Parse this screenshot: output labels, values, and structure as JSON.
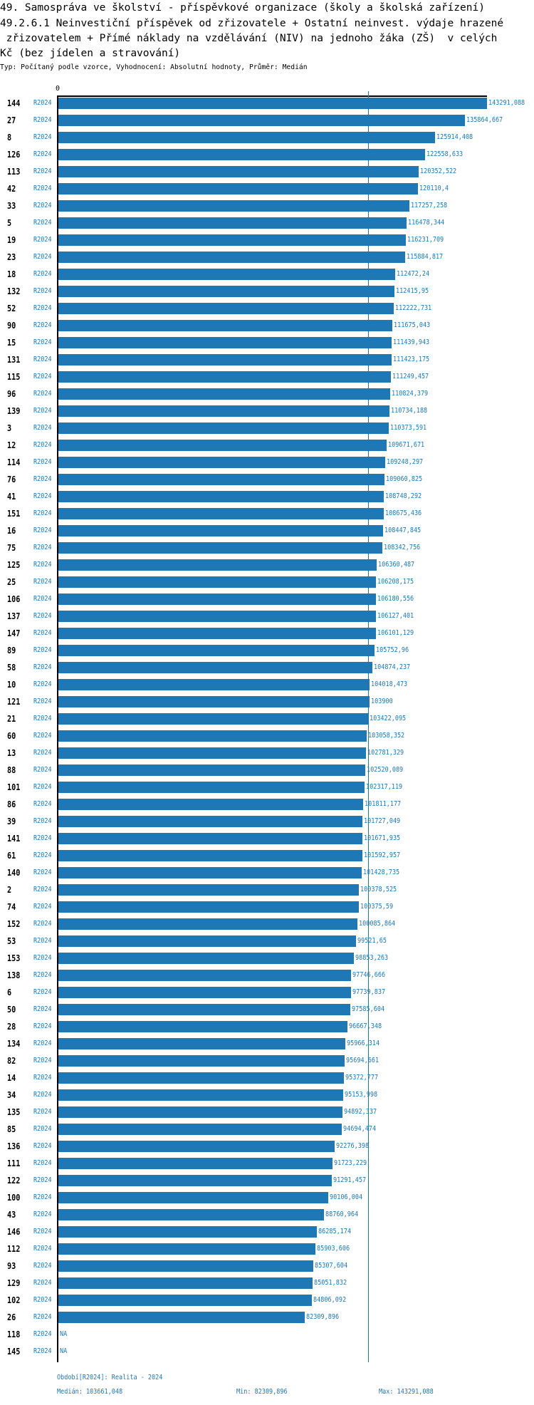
{
  "title_lines": [
    "49. Samospráva ve školství - příspěvkové organizace (školy a školská zařízení)",
    "49.2.6.1 Neinvestiční příspěvek od zřizovatele + Ostatní neinvest. výdaje hrazené",
    " zřizovatelem + Přímé náklady na vzdělávání (NIV) na jednoho žáka (ZŠ)  v celých",
    "Kč (bez jídelen a stravování)"
  ],
  "subtitle": "Typ: Počítaný podle vzorce, Vyhodnocení: Absolutní hodnoty, Průměr: Medián",
  "colors": {
    "bar": "#1f77b4",
    "text_accent": "#1f77b4"
  },
  "chart_data": {
    "type": "bar",
    "orientation": "horizontal",
    "x_tick_labels": [
      "0"
    ],
    "xlim": [
      0,
      143291.088
    ],
    "period_label": "R2024",
    "categories": [
      "144",
      "27",
      "8",
      "126",
      "113",
      "42",
      "33",
      "5",
      "19",
      "23",
      "18",
      "132",
      "52",
      "90",
      "15",
      "131",
      "115",
      "96",
      "139",
      "3",
      "12",
      "114",
      "76",
      "41",
      "151",
      "16",
      "75",
      "125",
      "25",
      "106",
      "137",
      "147",
      "89",
      "58",
      "10",
      "121",
      "21",
      "60",
      "13",
      "88",
      "101",
      "86",
      "39",
      "141",
      "61",
      "140",
      "2",
      "74",
      "152",
      "53",
      "153",
      "138",
      "6",
      "50",
      "28",
      "134",
      "82",
      "14",
      "34",
      "135",
      "85",
      "136",
      "111",
      "122",
      "100",
      "43",
      "146",
      "112",
      "93",
      "129",
      "102",
      "26",
      "118",
      "145"
    ],
    "values": [
      143291.088,
      135864.667,
      125914.408,
      122558.633,
      120352.522,
      120110.4,
      117257.258,
      116478.344,
      116231.709,
      115884.817,
      112472.24,
      112415.95,
      112222.731,
      111675.043,
      111439.943,
      111423.175,
      111249.457,
      110824.379,
      110734.188,
      110373.591,
      109671.671,
      109248.297,
      109060.825,
      108748.292,
      108675.436,
      108447.845,
      108342.756,
      106360.487,
      106208.175,
      106180.556,
      106127.401,
      106101.129,
      105752.96,
      104874.237,
      104018.473,
      103900,
      103422.095,
      103058.352,
      102781.329,
      102520.089,
      102317.119,
      101811.177,
      101727.049,
      101671.935,
      101592.957,
      101428.735,
      100378.525,
      100375.59,
      100085.864,
      99521.65,
      98853.263,
      97746.666,
      97739.837,
      97585.604,
      96667.348,
      95966.314,
      95694.661,
      95372.777,
      95153.998,
      94892.337,
      94694.474,
      92276.398,
      91723.229,
      91291.457,
      90106.004,
      88760.964,
      86285.174,
      85903.606,
      85307.604,
      85051.832,
      84806.092,
      82309.896,
      null,
      null
    ],
    "value_labels": [
      "143291,088",
      "135864,667",
      "125914,408",
      "122558,633",
      "120352,522",
      "120110,4",
      "117257,258",
      "116478,344",
      "116231,709",
      "115884,817",
      "112472,24",
      "112415,95",
      "112222,731",
      "111675,043",
      "111439,943",
      "111423,175",
      "111249,457",
      "110824,379",
      "110734,188",
      "110373,591",
      "109671,671",
      "109248,297",
      "109060,825",
      "108748,292",
      "108675,436",
      "108447,845",
      "108342,756",
      "106360,487",
      "106208,175",
      "106180,556",
      "106127,401",
      "106101,129",
      "105752,96",
      "104874,237",
      "104018,473",
      "103900",
      "103422,095",
      "103058,352",
      "102781,329",
      "102520,089",
      "102317,119",
      "101811,177",
      "101727,049",
      "101671,935",
      "101592,957",
      "101428,735",
      "100378,525",
      "100375,59",
      "100085,864",
      "99521,65",
      "98853,263",
      "97746,666",
      "97739,837",
      "97585,604",
      "96667,348",
      "95966,314",
      "95694,661",
      "95372,777",
      "95153,998",
      "94892,337",
      "94694,474",
      "92276,398",
      "91723,229",
      "91291,457",
      "90106,004",
      "88760,964",
      "86285,174",
      "85903,606",
      "85307,604",
      "85051,832",
      "84806,092",
      "82309,896",
      "NA",
      "NA"
    ],
    "median": 103661.048,
    "annotations": {
      "period": "Období[R2024]: Realita - 2024",
      "median": "Medián: 103661,048",
      "min": "Min: 82309,896",
      "max": "Max: 143291,088"
    }
  }
}
